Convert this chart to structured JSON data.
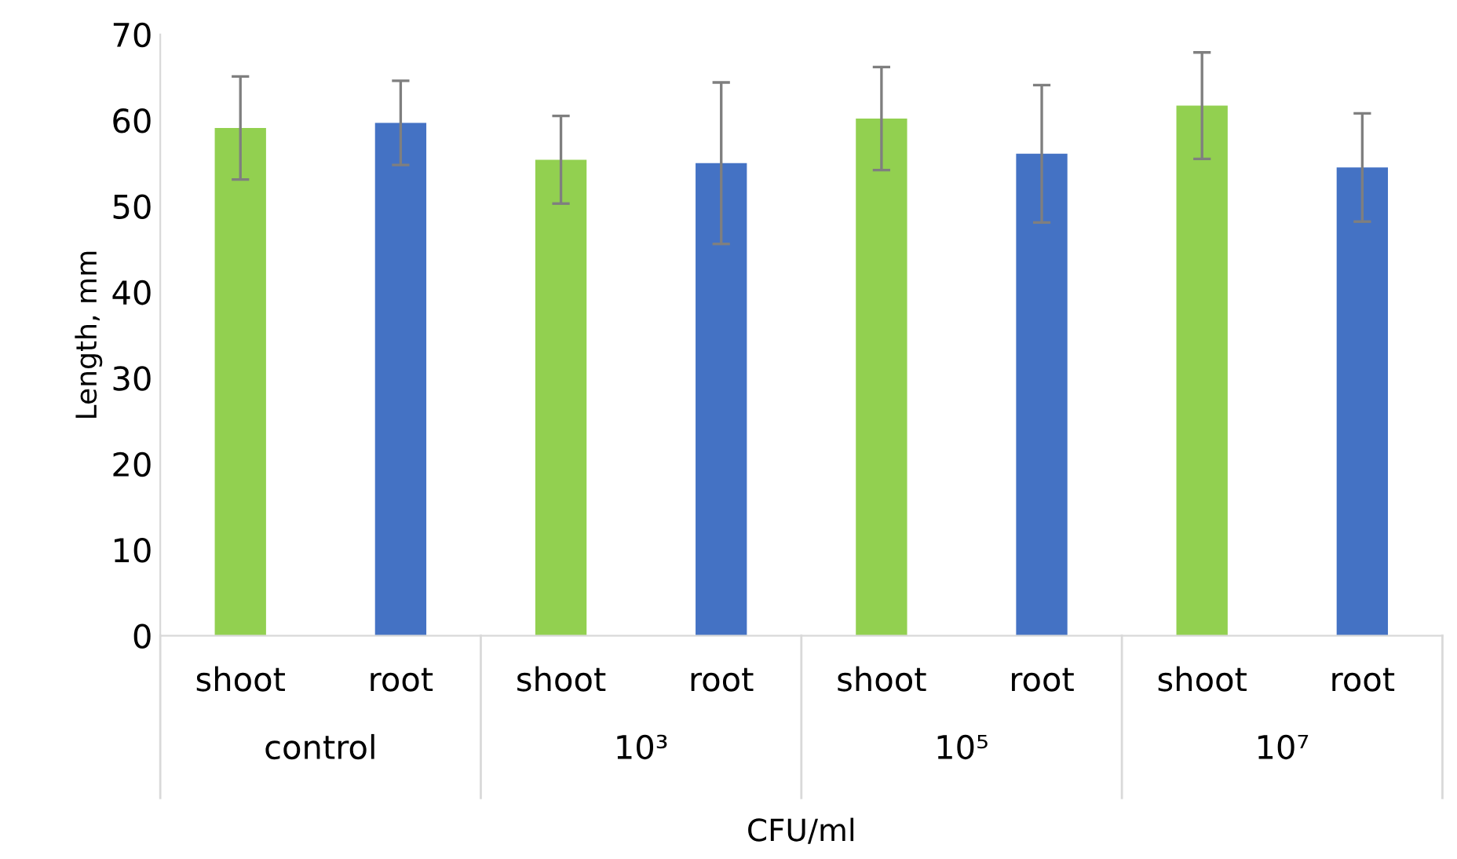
{
  "chart_data": {
    "type": "bar",
    "categories": [
      "shoot",
      "root",
      "shoot",
      "root",
      "shoot",
      "root",
      "shoot",
      "root"
    ],
    "values": [
      59.1,
      59.7,
      55.4,
      55.0,
      60.2,
      56.1,
      61.7,
      54.5
    ],
    "colors": [
      "#92d050",
      "#4472c4",
      "#92d050",
      "#4472c4",
      "#92d050",
      "#4472c4",
      "#92d050",
      "#4472c4"
    ],
    "errors": [
      6.0,
      4.9,
      5.1,
      9.4,
      6.0,
      8.0,
      6.2,
      6.3
    ],
    "ylim": [
      0,
      70
    ],
    "yticks": [
      0,
      10,
      20,
      30,
      40,
      50,
      60,
      70
    ],
    "ylabel": "Length, mm",
    "xlabel": "CFU/ml",
    "annotations": [
      "control",
      "10³",
      "10⁵",
      "10⁷"
    ],
    "grid": false,
    "legend": false
  }
}
